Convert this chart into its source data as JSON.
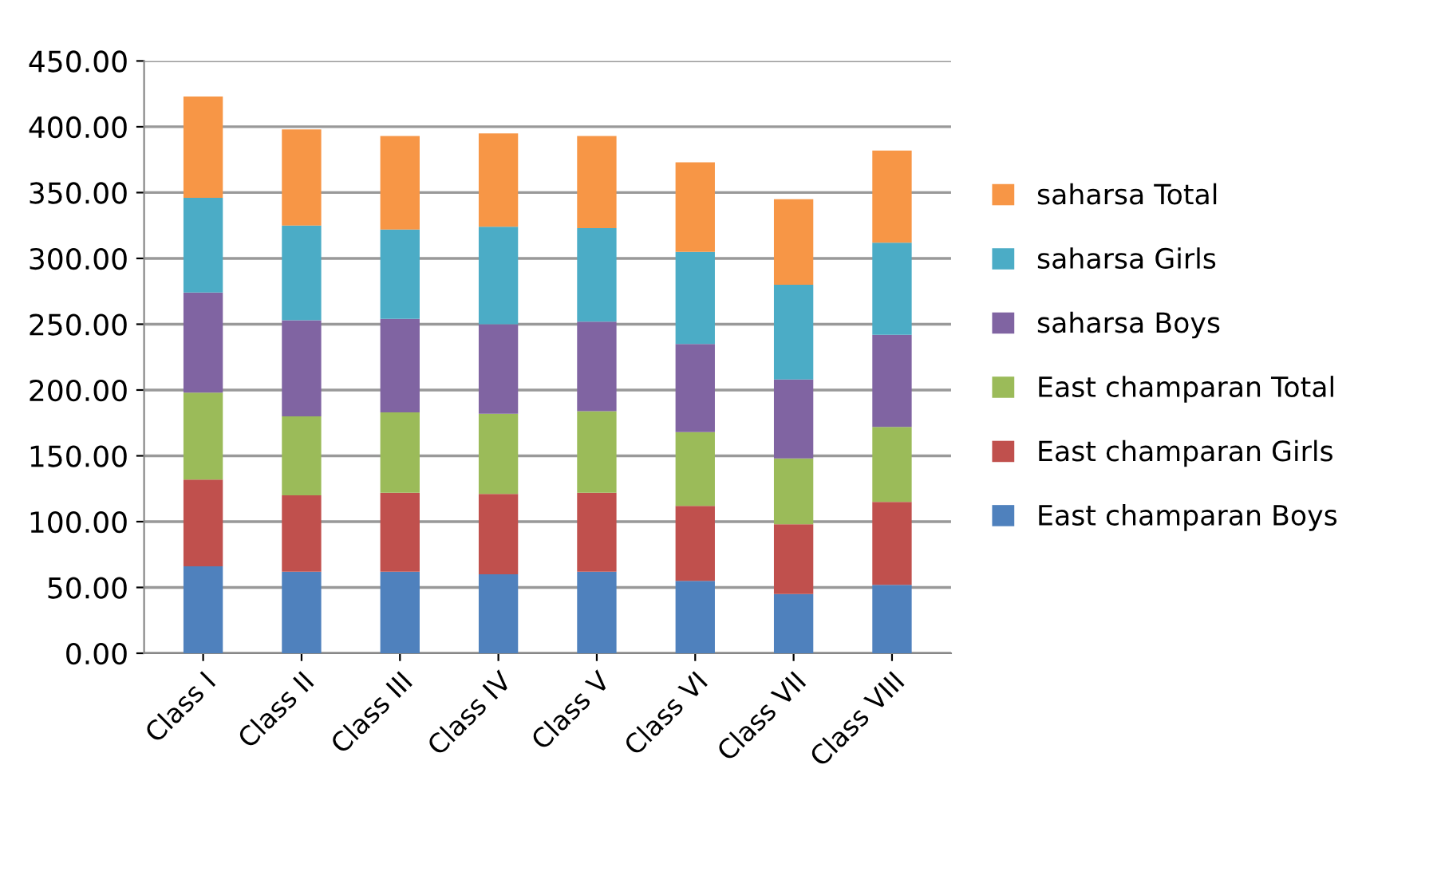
{
  "chart_data": {
    "type": "bar",
    "stacked": true,
    "categories": [
      "Class I",
      "Class II",
      "Class III",
      "Class IV",
      "Class V",
      "Class VI",
      "Class VII",
      "Class VIII"
    ],
    "series": [
      {
        "name": "East champaran Boys",
        "color": "#4f81bd",
        "values": [
          66,
          62,
          62,
          60,
          62,
          55,
          45,
          52
        ]
      },
      {
        "name": "East champaran Girls",
        "color": "#c0504d",
        "values": [
          66,
          58,
          60,
          61,
          60,
          57,
          53,
          63
        ]
      },
      {
        "name": "East champaran Total",
        "color": "#9bbb59",
        "values": [
          66,
          60,
          61,
          61,
          62,
          56,
          50,
          57
        ]
      },
      {
        "name": "saharsa Boys",
        "color": "#8064a2",
        "values": [
          76,
          73,
          71,
          68,
          68,
          67,
          60,
          70
        ]
      },
      {
        "name": "saharsa Girls",
        "color": "#4bacc6",
        "values": [
          72,
          72,
          68,
          74,
          71,
          70,
          72,
          70
        ]
      },
      {
        "name": "saharsa Total",
        "color": "#f79646",
        "values": [
          77,
          73,
          71,
          71,
          70,
          68,
          65,
          70
        ]
      }
    ],
    "ylim": [
      0,
      450
    ],
    "yticks": [
      {
        "value": 0,
        "label": "0.00"
      },
      {
        "value": 50,
        "label": "50.00"
      },
      {
        "value": 100,
        "label": "100.00"
      },
      {
        "value": 150,
        "label": "150.00"
      },
      {
        "value": 200,
        "label": "200.00"
      },
      {
        "value": 250,
        "label": "250.00"
      },
      {
        "value": 300,
        "label": "300.00"
      },
      {
        "value": 350,
        "label": "350.00"
      },
      {
        "value": 400,
        "label": "400.00"
      },
      {
        "value": 450,
        "label": "450.00"
      }
    ],
    "grid": "y",
    "legend": "right"
  }
}
